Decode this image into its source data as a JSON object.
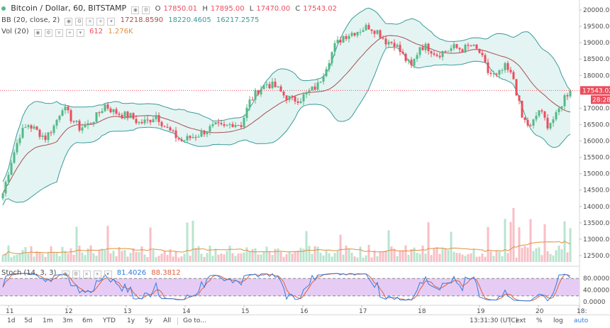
{
  "header": {
    "title": "Bitcoin / Dollar, 60, BITSTAMP",
    "ohlc": [
      {
        "k": "O",
        "v": "17850.01"
      },
      {
        "k": "H",
        "v": "17895.00"
      },
      {
        "k": "L",
        "v": "17470.00"
      },
      {
        "k": "C",
        "v": "17543.02"
      }
    ],
    "bb_label": "BB (20, close, 2)",
    "bb_values": [
      "17218.8590",
      "18220.4605",
      "16217.2575"
    ],
    "vol_label": "Vol (20)",
    "vol_values": [
      "612",
      "1.276K"
    ],
    "stoch_label": "Stoch (14, 3, 3)",
    "stoch_values": [
      "81.4026",
      "88.3812"
    ]
  },
  "price_axis": {
    "ticks": [
      "20000.00",
      "19500.00",
      "19000.00",
      "18500.00",
      "18000.00",
      "17500.00",
      "17000.00",
      "16500.00",
      "16000.00",
      "15500.00",
      "15000.00",
      "14500.00",
      "14000.00",
      "13500.00",
      "13000.00",
      "12500.00"
    ],
    "last_price": "17543.02",
    "countdown": "28:28"
  },
  "stoch_axis": {
    "ticks": [
      "80.0000",
      "40.0000",
      "0.0000"
    ]
  },
  "time_axis": {
    "ticks": [
      "11",
      "12",
      "13",
      "14",
      "15",
      "16",
      "17",
      "18",
      "19",
      "20",
      "18:"
    ]
  },
  "toolbar": {
    "ranges": [
      "1d",
      "5d",
      "1m",
      "3m",
      "6m",
      "YTD",
      "1y",
      "5y",
      "All"
    ],
    "goto": "Go to...",
    "clock": "13:31:30 (UTC)",
    "toggles": [
      "ext",
      "%",
      "log",
      "auto"
    ]
  },
  "colors": {
    "up": "#53b987",
    "down": "#eb4d5c",
    "band_fill": "#e4f4f3",
    "band_line": "#3b9b9b",
    "basis": "#a85050",
    "stoch_k": "#2f7ce0",
    "stoch_d": "#e0603a",
    "stoch_bg": "#e6ccf5",
    "last": "#eb4d5c"
  },
  "chart_data": {
    "type": "candlestick",
    "timeframe": "60",
    "symbol": "Bitcoin / Dollar",
    "exchange": "BITSTAMP",
    "x_ticks": [
      "11",
      "12",
      "13",
      "14",
      "15",
      "16",
      "17",
      "18",
      "19",
      "20",
      "18:"
    ],
    "y_range": [
      12250,
      20150
    ],
    "close_path": [
      [
        0,
        14400
      ],
      [
        3,
        15400
      ],
      [
        6,
        16200
      ],
      [
        9,
        16500
      ],
      [
        12,
        16300
      ],
      [
        15,
        16100
      ],
      [
        18,
        16450
      ],
      [
        21,
        17050
      ],
      [
        24,
        16700
      ],
      [
        27,
        16400
      ],
      [
        30,
        16500
      ],
      [
        33,
        16750
      ],
      [
        36,
        17100
      ],
      [
        39,
        16900
      ],
      [
        42,
        16800
      ],
      [
        45,
        16750
      ],
      [
        48,
        16550
      ],
      [
        51,
        16600
      ],
      [
        54,
        16800
      ],
      [
        57,
        16450
      ],
      [
        60,
        16200
      ],
      [
        63,
        16000
      ],
      [
        66,
        16100
      ],
      [
        69,
        16200
      ],
      [
        72,
        16350
      ],
      [
        75,
        16450
      ],
      [
        78,
        16400
      ],
      [
        81,
        16550
      ],
      [
        84,
        16500
      ],
      [
        87,
        17200
      ],
      [
        90,
        17550
      ],
      [
        93,
        17750
      ],
      [
        96,
        17650
      ],
      [
        99,
        17400
      ],
      [
        102,
        17250
      ],
      [
        105,
        17300
      ],
      [
        108,
        17500
      ],
      [
        111,
        17700
      ],
      [
        114,
        18300
      ],
      [
        117,
        18900
      ],
      [
        120,
        19200
      ],
      [
        123,
        19300
      ],
      [
        126,
        19400
      ],
      [
        129,
        19500
      ],
      [
        132,
        19350
      ],
      [
        135,
        19050
      ],
      [
        138,
        19000
      ],
      [
        141,
        18600
      ],
      [
        144,
        18250
      ],
      [
        147,
        18900
      ],
      [
        150,
        18850
      ],
      [
        153,
        18650
      ],
      [
        156,
        18750
      ],
      [
        159,
        18850
      ],
      [
        162,
        18800
      ],
      [
        165,
        18900
      ],
      [
        168,
        18700
      ],
      [
        171,
        18100
      ],
      [
        174,
        17950
      ],
      [
        177,
        18250
      ],
      [
        180,
        17900
      ],
      [
        183,
        16700
      ],
      [
        186,
        16400
      ],
      [
        189,
        16950
      ],
      [
        192,
        16500
      ],
      [
        195,
        16750
      ],
      [
        198,
        17350
      ],
      [
        200,
        17543
      ]
    ],
    "bollinger": {
      "length": 20,
      "source": "close",
      "mult": 2,
      "basis": 17218.859,
      "upper": 18220.4605,
      "lower": 16217.2575
    },
    "volume": {
      "length": 20,
      "last": 612,
      "ma": 1276,
      "y_ticks": [
        "13500.00",
        "13000.00",
        "12500.00"
      ]
    },
    "stochastic": {
      "params": [
        14,
        3,
        3
      ],
      "k": 81.4026,
      "d": 88.3812,
      "bands": [
        80,
        20
      ],
      "y_ticks": [
        "80.0000",
        "40.0000",
        "0.0000"
      ]
    },
    "last_price": 17543.02
  }
}
